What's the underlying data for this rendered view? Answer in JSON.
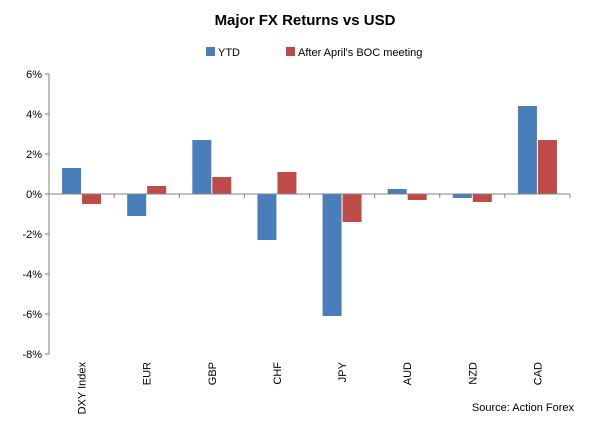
{
  "chart_data": {
    "type": "bar",
    "title": "Major FX Returns vs USD",
    "categories": [
      "DXY Index",
      "EUR",
      "GBP",
      "CHF",
      "JPY",
      "AUD",
      "NZD",
      "CAD"
    ],
    "series": [
      {
        "name": "YTD",
        "color": "#4a7ebb",
        "values": [
          1.3,
          -1.1,
          2.7,
          -2.3,
          -6.1,
          0.25,
          -0.2,
          4.4
        ]
      },
      {
        "name": "After April's BOC meeting",
        "color": "#be4b48",
        "values": [
          -0.5,
          0.4,
          0.85,
          1.1,
          -1.4,
          -0.3,
          -0.4,
          2.7
        ]
      }
    ],
    "y_ticks": [
      "6%",
      "4%",
      "2%",
      "0%",
      "-2%",
      "-4%",
      "-6%",
      "-8%"
    ],
    "ylim": [
      -8,
      6
    ],
    "y_tick_values": [
      6,
      4,
      2,
      0,
      -2,
      -4,
      -6,
      -8
    ],
    "legend_position": "top-center",
    "grid": false,
    "xlabel": "",
    "ylabel": "",
    "source": "Source: Action Forex"
  }
}
